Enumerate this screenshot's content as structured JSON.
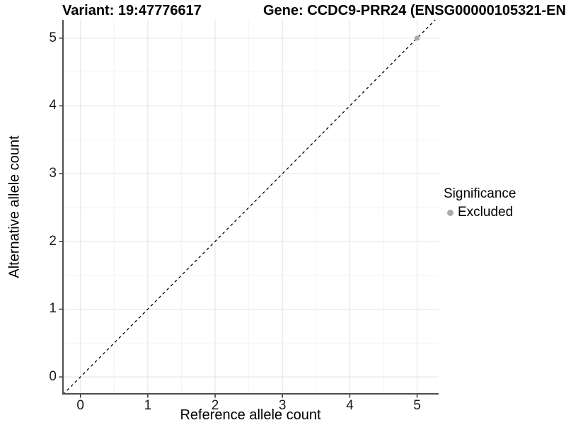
{
  "titles": {
    "variant": "Variant: 19:47776617",
    "gene": "Gene: CCDC9-PRR24 (ENSG00000105321-EN"
  },
  "legend": {
    "title": "Significance",
    "items": [
      {
        "label": "Excluded",
        "marker": "circle-icon",
        "color": "#aaaaaa"
      }
    ]
  },
  "chart_data": {
    "type": "scatter",
    "title": "Variant: 19:47776617   Gene: CCDC9-PRR24 (ENSG00000105321-EN",
    "xlabel": "Reference allele count",
    "ylabel": "Alternative allele count",
    "x_ticks": [
      0,
      1,
      2,
      3,
      4,
      5
    ],
    "y_ticks": [
      0,
      1,
      2,
      3,
      4,
      5
    ],
    "xlim": [
      -0.27,
      5.32
    ],
    "ylim": [
      -0.26,
      5.27
    ],
    "grid": "major+minor",
    "legend_position": "right",
    "legend_title": "Significance",
    "series": [
      {
        "name": "Excluded",
        "color": "#aaaaaa",
        "points": [
          {
            "x": 5,
            "y": 5
          }
        ]
      }
    ],
    "reference_line": {
      "type": "identity y=x",
      "style": "dashed",
      "color": "#000000"
    }
  },
  "colors": {
    "background": "#ffffff",
    "grid_major": "#e7e7e7",
    "grid_minor": "#f3f3f3",
    "axis_line": "#4d4d4d",
    "tick_mark": "#333333",
    "tick_text": "#1a1a1a",
    "title_text": "#000000",
    "point": "#aaaaaa",
    "ref_line": "#000000"
  }
}
